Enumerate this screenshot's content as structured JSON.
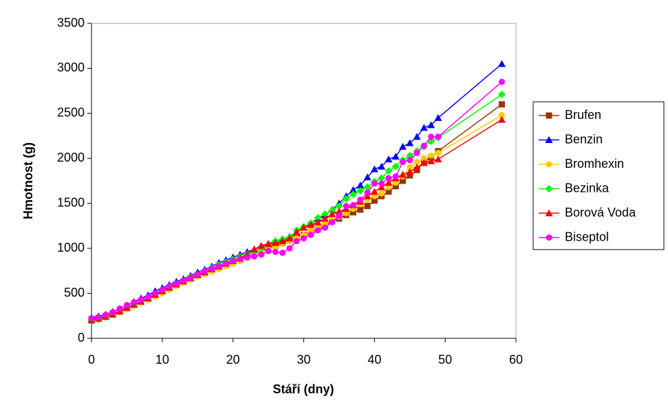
{
  "chart_data": {
    "type": "line",
    "xlabel": "Stáří (dny)",
    "ylabel": "Hmotnost (g)",
    "x": [
      0,
      1,
      2,
      3,
      4,
      5,
      6,
      7,
      8,
      9,
      10,
      11,
      12,
      13,
      14,
      15,
      16,
      17,
      18,
      19,
      20,
      21,
      22,
      23,
      24,
      25,
      26,
      27,
      28,
      29,
      30,
      31,
      32,
      33,
      34,
      35,
      36,
      37,
      38,
      39,
      40,
      41,
      42,
      43,
      44,
      45,
      46,
      47,
      48,
      49,
      58
    ],
    "xlim": [
      0,
      60
    ],
    "xticks": [
      0,
      10,
      20,
      30,
      40,
      50,
      60
    ],
    "ylim": [
      0,
      3500
    ],
    "yticks": [
      0,
      500,
      1000,
      1500,
      2000,
      2500,
      3000,
      3500
    ],
    "legend": "right",
    "series": [
      {
        "name": "Brufen",
        "color": "#993300",
        "marker": "square",
        "values": [
          210,
          225,
          245,
          270,
          300,
          335,
          370,
          405,
          440,
          480,
          520,
          560,
          600,
          630,
          665,
          700,
          730,
          760,
          790,
          815,
          845,
          875,
          905,
          935,
          970,
          1000,
          1030,
          1060,
          1090,
          1120,
          1150,
          1180,
          1210,
          1250,
          1300,
          1330,
          1370,
          1400,
          1430,
          1470,
          1530,
          1580,
          1630,
          1690,
          1750,
          1810,
          1870,
          1960,
          2010,
          2080,
          2600
        ]
      },
      {
        "name": "Benzin",
        "color": "#0000ff",
        "marker": "triangle",
        "values": [
          230,
          245,
          265,
          295,
          330,
          365,
          405,
          445,
          480,
          525,
          560,
          595,
          630,
          660,
          695,
          735,
          765,
          800,
          840,
          870,
          900,
          930,
          960,
          990,
          1020,
          1050,
          1080,
          1100,
          1130,
          1180,
          1230,
          1280,
          1330,
          1370,
          1430,
          1500,
          1580,
          1650,
          1700,
          1790,
          1880,
          1910,
          1990,
          2020,
          2130,
          2170,
          2240,
          2340,
          2370,
          2450,
          3050
        ]
      },
      {
        "name": "Bromhexin",
        "color": "#ffcc00",
        "marker": "circle",
        "values": [
          200,
          215,
          235,
          260,
          290,
          325,
          360,
          395,
          430,
          465,
          500,
          540,
          580,
          615,
          650,
          685,
          715,
          740,
          770,
          800,
          830,
          860,
          895,
          930,
          960,
          990,
          1020,
          1050,
          1080,
          1110,
          1150,
          1190,
          1230,
          1270,
          1310,
          1350,
          1390,
          1440,
          1490,
          1540,
          1580,
          1610,
          1680,
          1730,
          1800,
          1900,
          1960,
          2000,
          2030,
          2060,
          2480
        ]
      },
      {
        "name": "Bezinka",
        "color": "#00ff00",
        "marker": "diamond",
        "values": [
          190,
          210,
          235,
          265,
          300,
          340,
          375,
          410,
          450,
          490,
          530,
          570,
          605,
          640,
          675,
          710,
          745,
          780,
          815,
          845,
          875,
          905,
          935,
          965,
          1000,
          1040,
          1080,
          1100,
          1120,
          1200,
          1240,
          1280,
          1340,
          1380,
          1420,
          1470,
          1550,
          1600,
          1640,
          1680,
          1740,
          1780,
          1860,
          1910,
          1980,
          2030,
          2080,
          2130,
          2190,
          2230,
          2710
        ]
      },
      {
        "name": "Borová Voda",
        "color": "#ff0000",
        "marker": "triangle",
        "values": [
          200,
          220,
          240,
          265,
          300,
          340,
          375,
          410,
          445,
          485,
          525,
          565,
          600,
          635,
          670,
          705,
          735,
          770,
          800,
          830,
          860,
          890,
          930,
          990,
          1030,
          1050,
          1060,
          1080,
          1110,
          1180,
          1230,
          1260,
          1290,
          1330,
          1380,
          1410,
          1440,
          1480,
          1520,
          1580,
          1630,
          1680,
          1730,
          1780,
          1820,
          1850,
          1900,
          1950,
          1970,
          1990,
          2430
        ]
      },
      {
        "name": "Biseptol",
        "color": "#ff00ff",
        "marker": "circle",
        "values": [
          220,
          235,
          260,
          290,
          330,
          370,
          400,
          430,
          460,
          500,
          540,
          580,
          610,
          640,
          670,
          710,
          745,
          775,
          800,
          830,
          860,
          880,
          900,
          910,
          930,
          970,
          960,
          950,
          1000,
          1080,
          1110,
          1150,
          1200,
          1230,
          1290,
          1360,
          1470,
          1480,
          1540,
          1620,
          1720,
          1720,
          1780,
          1800,
          1960,
          1980,
          2060,
          2140,
          2240,
          2240,
          2850
        ]
      }
    ]
  }
}
